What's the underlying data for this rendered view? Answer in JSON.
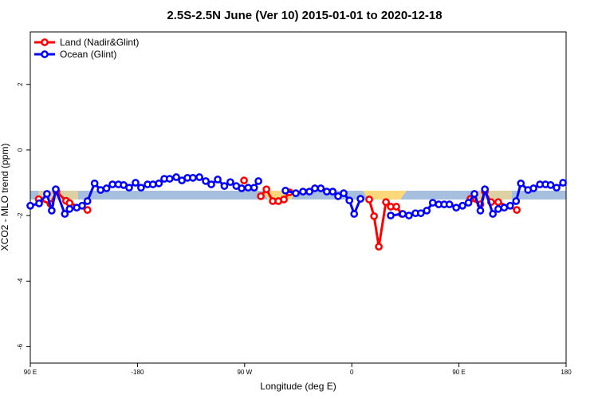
{
  "chart_data": {
    "type": "line",
    "title": "2.5S-2.5N June (Ver 10)   2015-01-01 to 2020-12-18",
    "x_label": "Longitude (deg E)",
    "y_label": "XCO2 - MLO trend (ppm)",
    "xlim": [
      -270,
      180
    ],
    "ylim": [
      -6.5,
      3.6
    ],
    "xticks": [
      {
        "value": -270,
        "label": "90 E"
      },
      -180,
      {
        "value": -90,
        "label": "90 W"
      },
      0,
      {
        "value": 90,
        "label": "90 E"
      },
      180
    ],
    "yticks": [
      2,
      0,
      -2,
      -4,
      -6
    ],
    "legend": "top-left",
    "series": [
      {
        "name": "Land (Nadir&Glint)",
        "color": "#ff0000",
        "x": [
          -263,
          -253,
          -248,
          -240,
          -237,
          -222,
          null,
          -90.5,
          null,
          -76.4,
          -71.7,
          -66.4,
          -61.7,
          -57,
          -52.3,
          null,
          14.6,
          18.7,
          22.7,
          28.7,
          32.7,
          37.4,
          42,
          null,
          99.7,
          108,
          111.8,
          117,
          123,
          138.6
        ],
        "values": [
          -1.5,
          -1.65,
          -1.27,
          -1.55,
          -1.62,
          -1.83,
          null,
          -0.93,
          null,
          -1.41,
          -1.2,
          -1.56,
          -1.56,
          -1.51,
          -1.29,
          null,
          -1.51,
          -2.02,
          -2.95,
          -1.59,
          -1.73,
          -1.73,
          -1.95,
          null,
          -1.49,
          -1.66,
          -1.27,
          -1.59,
          -1.59,
          -1.83
        ]
      },
      {
        "name": "Ocean (Glint)",
        "color": "#0000ff",
        "x": [
          -270,
          -262.6,
          -256,
          -252,
          -248.6,
          -241,
          -237,
          -231,
          -226.5,
          -222,
          -216,
          -211,
          -206,
          -201,
          -196,
          -191.6,
          -187,
          -181.6,
          -177,
          -171.5,
          -167,
          -162,
          -157.5,
          -153,
          -147.4,
          -142.7,
          -138,
          -133.4,
          -128,
          -122.6,
          -118,
          -112.6,
          -107,
          -102,
          -97,
          -92.5,
          -87,
          -82,
          -78.4,
          null,
          -55.7,
          -47,
          -41,
          -35.6,
          -31,
          -26,
          -21,
          -16,
          -11.5,
          -6.8,
          -2,
          2,
          7.3,
          null,
          32.7,
          42.8,
          48,
          53.5,
          58,
          63,
          68,
          73,
          77.6,
          82,
          87.7,
          93,
          98,
          103,
          108,
          111.8,
          118.5,
          123,
          128,
          133,
          138,
          142,
          148,
          152.6,
          158,
          162.7,
          167,
          172,
          177.4
        ],
        "values": [
          -1.7,
          -1.63,
          -1.34,
          -1.85,
          -1.2,
          -1.95,
          -1.8,
          -1.76,
          -1.7,
          -1.56,
          -1.02,
          -1.22,
          -1.17,
          -1.05,
          -1.05,
          -1.07,
          -1.15,
          -1.0,
          -1.15,
          -1.05,
          -1.05,
          -1.02,
          -0.88,
          -0.88,
          -0.83,
          -0.93,
          -0.85,
          -0.85,
          -0.83,
          -0.95,
          -1.05,
          -0.9,
          -1.1,
          -0.98,
          -1.1,
          -1.17,
          -1.15,
          -1.15,
          -0.95,
          null,
          -1.24,
          -1.32,
          -1.27,
          -1.27,
          -1.17,
          -1.17,
          -1.27,
          -1.27,
          -1.41,
          -1.32,
          -1.54,
          -1.95,
          -1.49,
          null,
          -2.0,
          -1.95,
          -2.0,
          -1.93,
          -1.93,
          -1.85,
          -1.61,
          -1.66,
          -1.66,
          -1.66,
          -1.76,
          -1.7,
          -1.61,
          -1.34,
          -1.85,
          -1.2,
          -1.95,
          -1.8,
          -1.76,
          -1.7,
          -1.56,
          -1.02,
          -1.22,
          -1.17,
          -1.05,
          -1.05,
          -1.07,
          -1.15,
          -1.0
        ]
      }
    ]
  }
}
